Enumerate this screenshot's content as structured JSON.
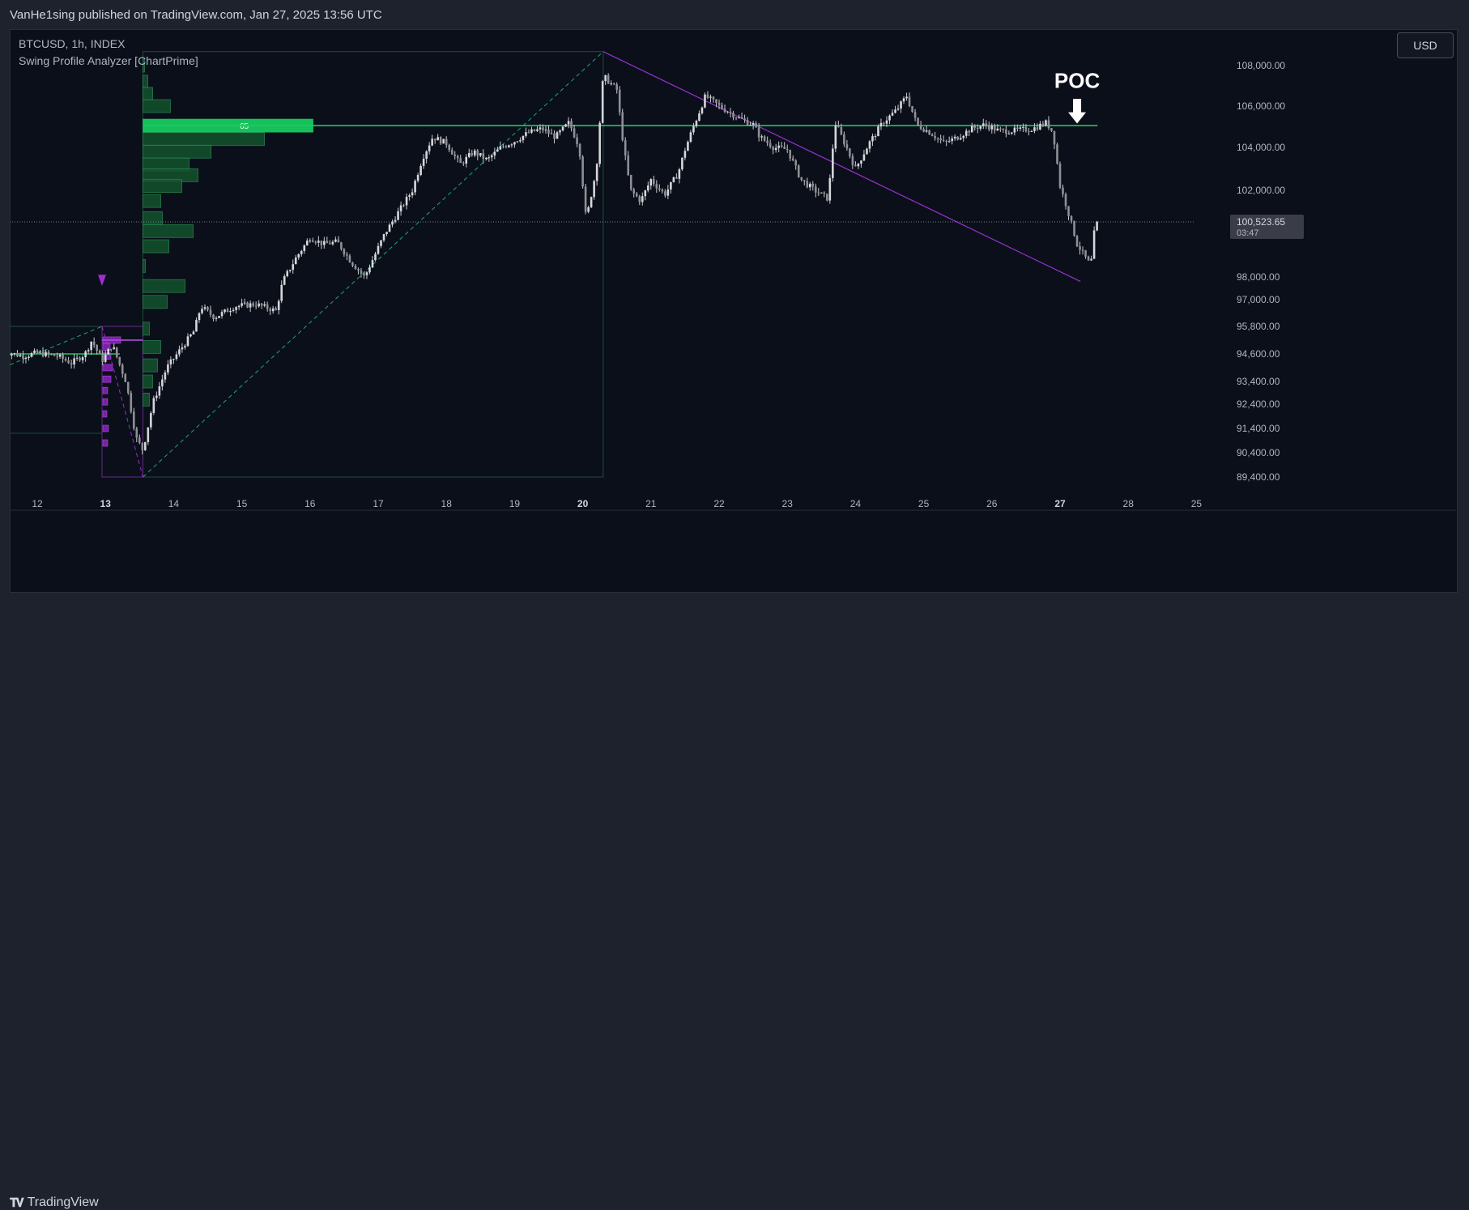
{
  "header": {
    "publish_text": "VanHe1sing published on TradingView.com, Jan 27, 2025 13:56 UTC"
  },
  "chart_header": {
    "symbol_line": "BTCUSD, 1h, INDEX",
    "indicator": "Swing Profile Analyzer [ChartPrime]"
  },
  "toolbar": {
    "currency": "USD"
  },
  "footer": {
    "brand": "TradingView",
    "logo_icon": "tradingview-logo-icon"
  },
  "colors": {
    "background": "#0b0f1a",
    "candle": "#c8c8cc",
    "poc_line": "#22c55e",
    "profile_bar": "#14532d",
    "profile_edge": "#22c55e",
    "poc_bar": "#16c15c",
    "swing_line": "#9b30d0",
    "dashed_line": "#1fa37a",
    "axis_text": "#b2b5be"
  },
  "chart_data": {
    "type": "candlestick",
    "symbol": "BTCUSD",
    "timeframe": "1h",
    "x_axis": {
      "ticks": [
        "12",
        "13",
        "14",
        "15",
        "16",
        "17",
        "18",
        "19",
        "20",
        "21",
        "22",
        "23",
        "24",
        "25",
        "26",
        "27",
        "28",
        "25"
      ],
      "bold_ticks": [
        "13",
        "20",
        "27"
      ]
    },
    "y_axis": {
      "scale": "log",
      "tick_labels": [
        "108,000.00",
        "106,000.00",
        "104,000.00",
        "102,000.00",
        "98,000.00",
        "97,000.00",
        "95,800.00",
        "94,600.00",
        "93,400.00",
        "92,400.00",
        "91,400.00",
        "90,400.00",
        "89,400.00"
      ],
      "tick_values": [
        108000,
        106000,
        104000,
        102000,
        98000,
        97000,
        95800,
        94600,
        93400,
        92400,
        91400,
        90400,
        89400
      ]
    },
    "last_price": {
      "label": "100,523.65",
      "countdown": "03:47",
      "value": 100523.65
    },
    "poc": {
      "label": "POC",
      "value": 105050,
      "volume_label": "65"
    },
    "close_path": [
      [
        11.5,
        94700
      ],
      [
        11.8,
        94500
      ],
      [
        12.0,
        94650
      ],
      [
        12.3,
        94500
      ],
      [
        12.5,
        94200
      ],
      [
        12.7,
        94600
      ],
      [
        12.8,
        95200
      ],
      [
        12.95,
        94300
      ],
      [
        13.1,
        95000
      ],
      [
        13.3,
        93400
      ],
      [
        13.45,
        91000
      ],
      [
        13.55,
        90500
      ],
      [
        13.7,
        92500
      ],
      [
        13.9,
        94000
      ],
      [
        14.1,
        94800
      ],
      [
        14.3,
        95600
      ],
      [
        14.4,
        96700
      ],
      [
        14.6,
        96200
      ],
      [
        14.9,
        96700
      ],
      [
        15.2,
        96800
      ],
      [
        15.5,
        96500
      ],
      [
        15.6,
        97800
      ],
      [
        15.8,
        98900
      ],
      [
        16.0,
        99800
      ],
      [
        16.2,
        99500
      ],
      [
        16.4,
        99600
      ],
      [
        16.6,
        98700
      ],
      [
        16.8,
        98000
      ],
      [
        16.95,
        99000
      ],
      [
        17.1,
        100000
      ],
      [
        17.3,
        101000
      ],
      [
        17.5,
        102000
      ],
      [
        17.65,
        103500
      ],
      [
        17.8,
        104500
      ],
      [
        18.0,
        104200
      ],
      [
        18.2,
        103200
      ],
      [
        18.4,
        103800
      ],
      [
        18.6,
        103400
      ],
      [
        18.8,
        104000
      ],
      [
        19.0,
        104300
      ],
      [
        19.2,
        104700
      ],
      [
        19.4,
        104900
      ],
      [
        19.6,
        104500
      ],
      [
        19.8,
        105200
      ],
      [
        19.95,
        104000
      ],
      [
        20.05,
        100600
      ],
      [
        20.2,
        103000
      ],
      [
        20.3,
        107500
      ],
      [
        20.5,
        106800
      ],
      [
        20.6,
        104000
      ],
      [
        20.7,
        102000
      ],
      [
        20.85,
        101500
      ],
      [
        21.0,
        102500
      ],
      [
        21.2,
        101800
      ],
      [
        21.4,
        102800
      ],
      [
        21.5,
        103900
      ],
      [
        21.6,
        104800
      ],
      [
        21.8,
        106500
      ],
      [
        22.0,
        106000
      ],
      [
        22.3,
        105400
      ],
      [
        22.5,
        105100
      ],
      [
        22.6,
        104500
      ],
      [
        22.8,
        104000
      ],
      [
        23.0,
        103900
      ],
      [
        23.2,
        102500
      ],
      [
        23.4,
        102000
      ],
      [
        23.5,
        101800
      ],
      [
        23.6,
        101600
      ],
      [
        23.7,
        105200
      ],
      [
        23.8,
        104500
      ],
      [
        24.0,
        103000
      ],
      [
        24.2,
        104200
      ],
      [
        24.4,
        105200
      ],
      [
        24.6,
        105800
      ],
      [
        24.75,
        106500
      ],
      [
        24.9,
        105100
      ],
      [
        25.1,
        104700
      ],
      [
        25.3,
        104200
      ],
      [
        25.5,
        104500
      ],
      [
        25.7,
        104900
      ],
      [
        25.9,
        105100
      ],
      [
        26.1,
        104800
      ],
      [
        26.3,
        104800
      ],
      [
        26.6,
        104900
      ],
      [
        26.8,
        105200
      ],
      [
        26.9,
        104700
      ],
      [
        27.0,
        102200
      ],
      [
        27.1,
        101200
      ],
      [
        27.25,
        99500
      ],
      [
        27.35,
        99000
      ],
      [
        27.45,
        98500
      ],
      [
        27.5,
        100000
      ],
      [
        27.55,
        100523.65
      ]
    ],
    "annotations": {
      "swing_high_line": {
        "from": [
          20.3,
          108700
        ],
        "to": [
          27.3,
          97800
        ]
      },
      "zigzag_dashed": [
        [
          13.55,
          89400
        ],
        [
          20.3,
          108700
        ]
      ],
      "pre_dashed": [
        [
          11.5,
          94000
        ],
        [
          12.95,
          95800
        ]
      ],
      "drop_dashed": [
        [
          12.95,
          95800
        ],
        [
          13.55,
          89400
        ]
      ]
    }
  }
}
